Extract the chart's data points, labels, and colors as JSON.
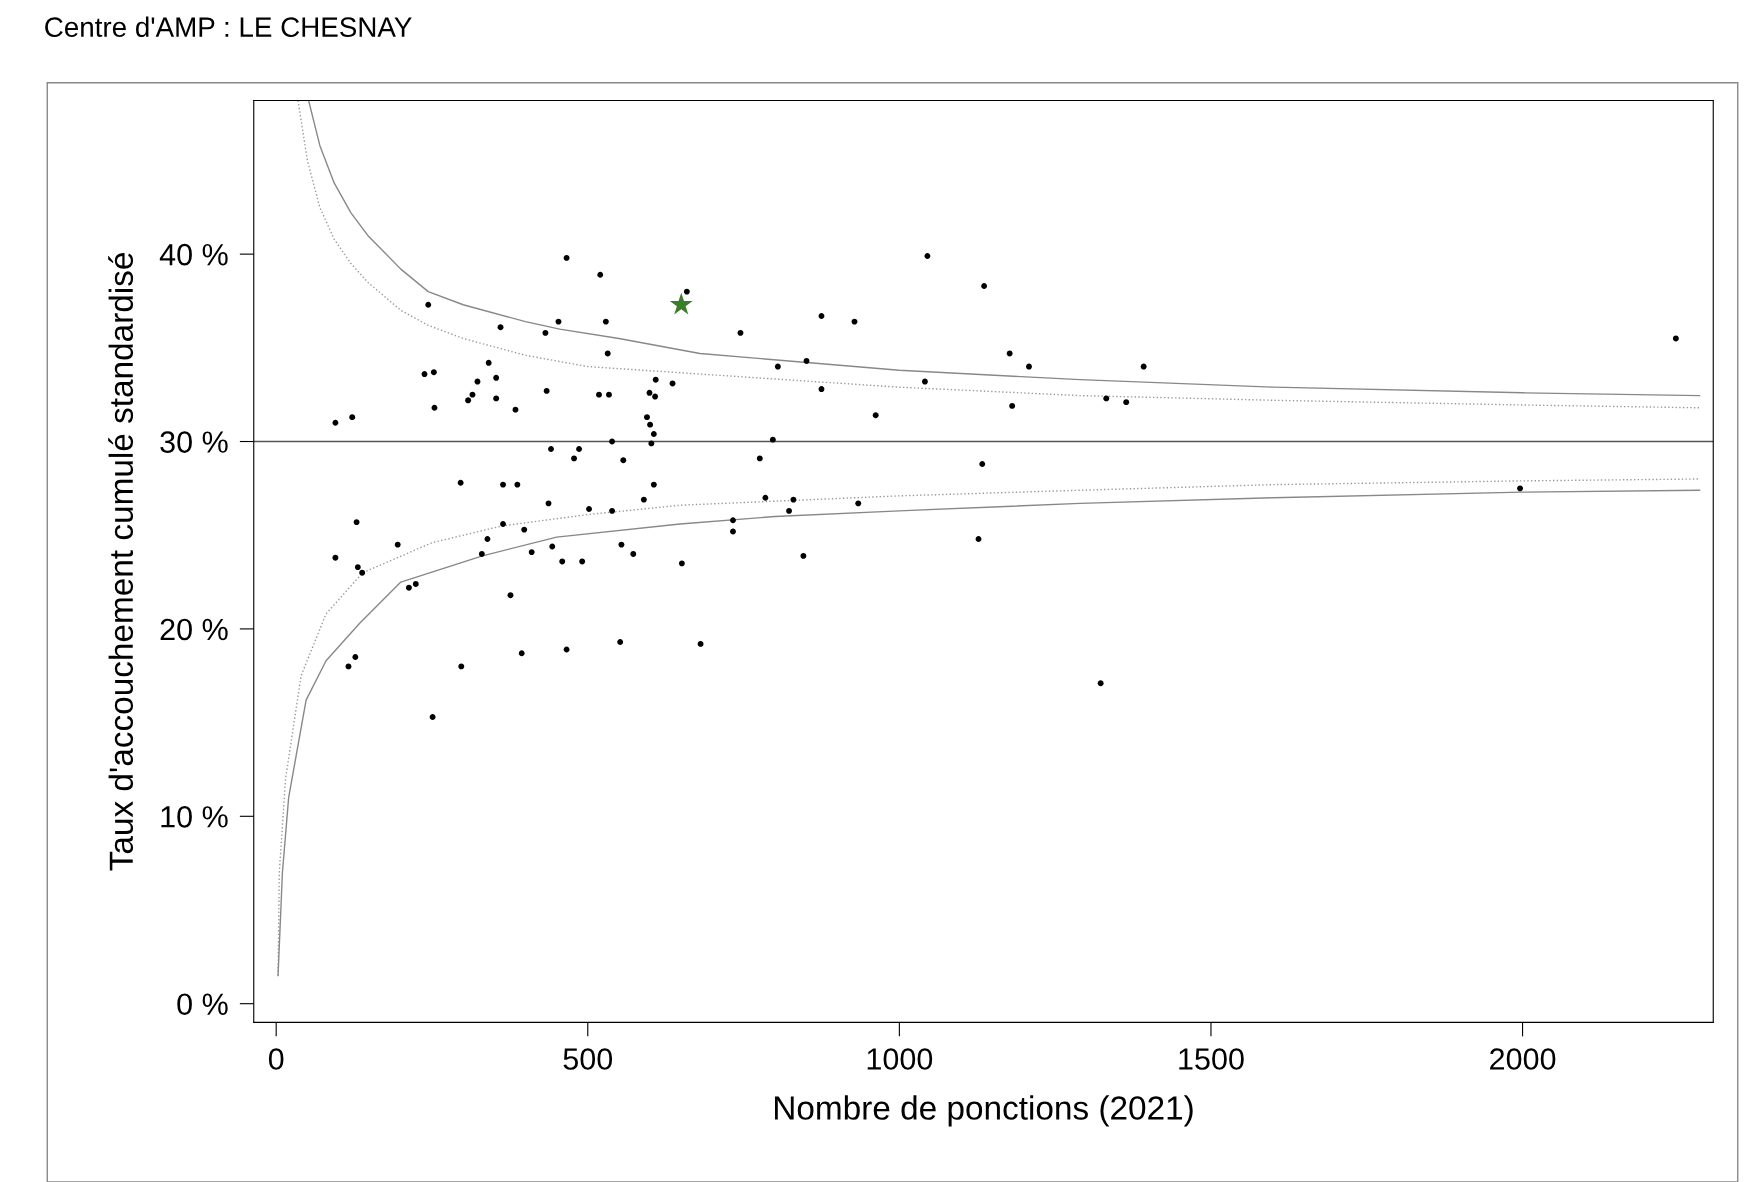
{
  "chart_data": {
    "type": "scatter",
    "title": "Centre d'AMP : LE CHESNAY",
    "xlabel": "Nombre de ponctions (2021)",
    "ylabel": "Taux d'accouchement cumulé standardisé",
    "xlim": [
      -36,
      2306
    ],
    "ylim": [
      -1,
      48.2
    ],
    "xticks": [
      0,
      500,
      1000,
      1500,
      2000
    ],
    "yticks": [
      {
        "value": 0,
        "label": "0 %"
      },
      {
        "value": 10,
        "label": "10 %"
      },
      {
        "value": 20,
        "label": "20 %"
      },
      {
        "value": 30,
        "label": "30 %"
      },
      {
        "value": 40,
        "label": "40 %"
      }
    ],
    "grid": false,
    "legend": false,
    "ref_lines": [
      {
        "axis": "y",
        "value": 30,
        "color": "#555555",
        "line_style": "solid"
      }
    ],
    "series": [
      {
        "color": "#000000",
        "marker": "circle",
        "x": [
          95,
          95,
          122,
          129,
          131,
          138,
          116,
          127,
          195,
          213,
          224,
          244,
          238,
          253,
          254,
          251,
          296,
          297,
          308,
          315,
          323,
          341,
          353,
          353,
          360,
          364,
          364,
          384,
          387,
          339,
          330,
          376,
          398,
          394,
          410,
          432,
          434,
          437,
          441,
          443,
          453,
          459,
          466,
          466,
          478,
          486,
          491,
          502,
          520,
          518,
          529,
          532,
          534,
          539,
          539,
          552,
          554,
          557,
          573,
          590,
          595,
          599,
          600,
          606,
          602,
          608,
          609,
          606,
          636,
          651,
          681,
          659,
          745,
          733,
          733,
          776,
          785,
          797,
          805,
          823,
          830,
          846,
          851,
          875,
          875,
          928,
          934,
          962,
          1041,
          1045,
          1127,
          1133,
          1136,
          1177,
          1181,
          1208,
          1323,
          1332,
          1364,
          1392,
          1996,
          2246
        ],
        "values": [
          23.8,
          31.0,
          31.3,
          25.7,
          23.3,
          23.0,
          18.0,
          18.5,
          24.5,
          22.2,
          22.4,
          37.3,
          33.6,
          33.7,
          31.8,
          15.3,
          27.8,
          18.0,
          32.2,
          32.5,
          33.2,
          34.2,
          33.4,
          32.3,
          36.1,
          27.7,
          25.6,
          31.7,
          27.7,
          24.8,
          24.0,
          21.8,
          25.3,
          18.7,
          24.1,
          35.8,
          32.7,
          26.7,
          29.6,
          24.4,
          36.4,
          23.6,
          39.8,
          18.9,
          29.1,
          29.6,
          23.6,
          26.4,
          38.9,
          32.5,
          36.4,
          34.7,
          32.5,
          30.0,
          26.3,
          19.3,
          24.5,
          29.0,
          24.0,
          26.9,
          31.3,
          32.6,
          30.9,
          30.4,
          29.9,
          32.4,
          33.3,
          27.7,
          33.1,
          23.5,
          19.2,
          38.0,
          35.8,
          25.8,
          25.2,
          29.1,
          27.0,
          30.1,
          34.0,
          26.3,
          26.9,
          23.9,
          34.3,
          36.7,
          32.8,
          36.4,
          26.7,
          31.4,
          33.2,
          39.9,
          24.8,
          28.8,
          38.3,
          34.7,
          31.9,
          34.0,
          17.1,
          32.3,
          32.1,
          34.0,
          27.5,
          35.5
        ]
      },
      {
        "type": "scatter",
        "color": "#3a7d2a",
        "marker": "star",
        "x": [
          650
        ],
        "values": [
          37.3
        ]
      },
      {
        "type": "line",
        "color": "#888888",
        "line_style": "solid",
        "x": [
          52,
          70,
          93,
          120,
          147,
          200,
          244,
          300,
          400,
          455,
          550,
          680,
          1000,
          1290,
          1600,
          2000,
          2284
        ],
        "values": [
          48.2,
          45.8,
          43.8,
          42.2,
          41.0,
          39.2,
          38.0,
          37.3,
          36.4,
          36.0,
          35.5,
          34.7,
          33.8,
          33.3,
          32.9,
          32.6,
          32.45
        ]
      },
      {
        "type": "line",
        "color": "#999999",
        "line_style": "dotted",
        "x": [
          35,
          50,
          70,
          93,
          120,
          147,
          200,
          244,
          300,
          400,
          500,
          680,
          1000,
          1290,
          1600,
          2000,
          2284
        ],
        "values": [
          48.2,
          45.0,
          42.5,
          40.8,
          39.5,
          38.5,
          37.0,
          36.2,
          35.5,
          34.6,
          34.0,
          33.6,
          32.9,
          32.45,
          32.2,
          31.95,
          31.8
        ]
      },
      {
        "type": "line",
        "color": "#999999",
        "line_style": "dotted",
        "x": [
          3,
          5,
          15,
          40,
          80,
          139,
          250,
          363,
          500,
          648,
          1000,
          1290,
          1600,
          2000,
          2284
        ],
        "values": [
          1.5,
          7.0,
          12.0,
          17.5,
          20.8,
          23.0,
          24.6,
          25.5,
          26.1,
          26.6,
          27.1,
          27.4,
          27.7,
          27.9,
          28.0
        ]
      },
      {
        "type": "line",
        "color": "#888888",
        "line_style": "solid",
        "x": [
          3,
          10,
          20,
          48,
          80,
          134,
          200,
          331,
          450,
          648,
          800,
          1000,
          1290,
          1600,
          2000,
          2284
        ],
        "values": [
          1.5,
          7.0,
          11.0,
          16.2,
          18.3,
          20.3,
          22.5,
          23.9,
          24.9,
          25.6,
          26.0,
          26.3,
          26.7,
          27.0,
          27.3,
          27.4
        ]
      }
    ]
  }
}
